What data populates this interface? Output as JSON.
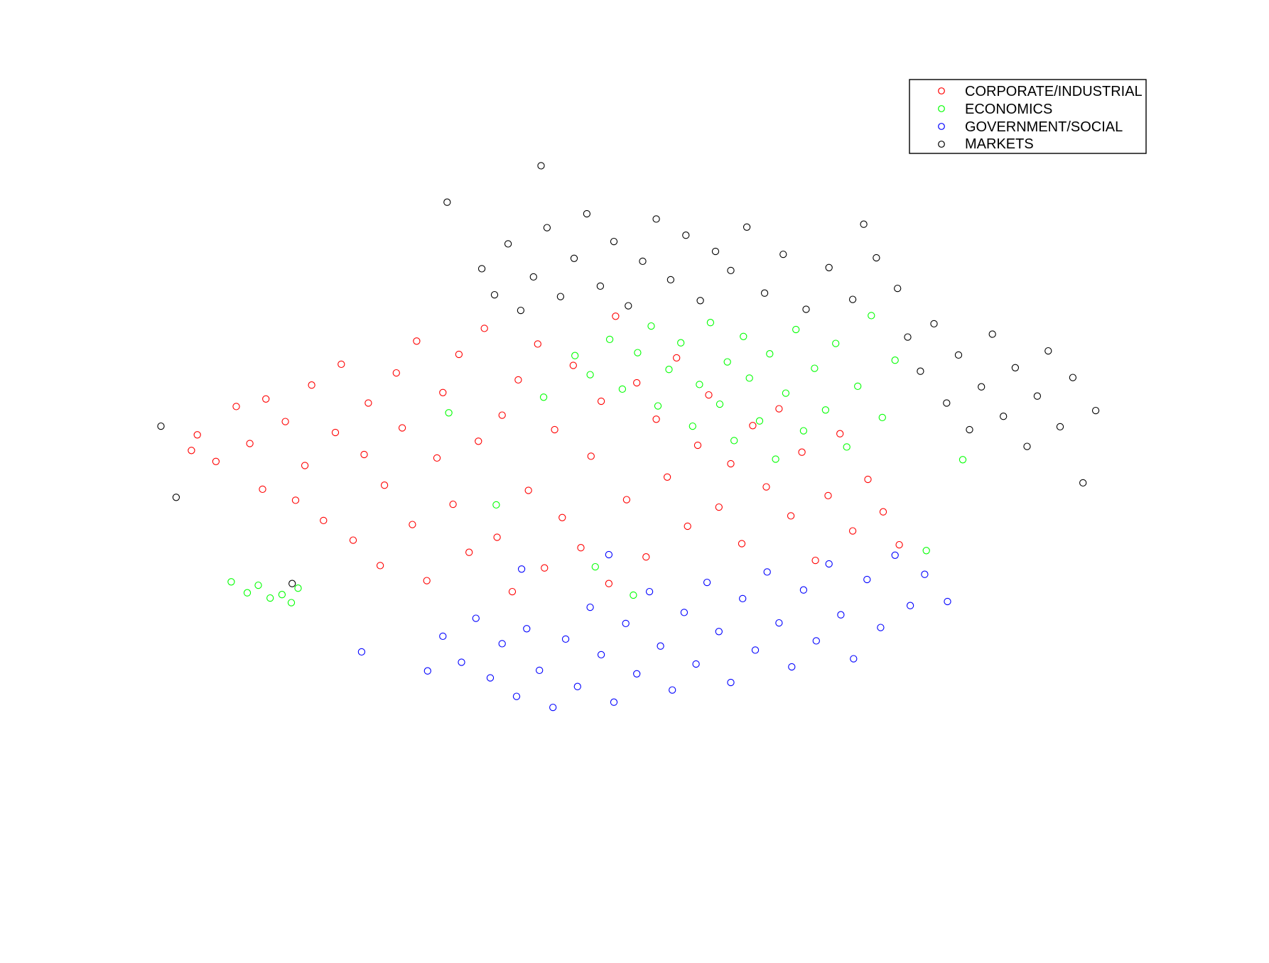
{
  "chart_data": {
    "type": "scatter",
    "title": "",
    "xlabel": "",
    "ylabel": "",
    "axes_visible": false,
    "grid": false,
    "legend_position": "top-right",
    "marker": "open-circle",
    "series": [
      {
        "name": "CORPORATE/INDUSTRIAL",
        "color": "#ff0000",
        "approx_point_count": 2300,
        "points": [
          [
            -42.5,
            3.2
          ],
          [
            -41.8,
            5.9
          ],
          [
            -39.6,
            1.3
          ],
          [
            -37.2,
            10.8
          ],
          [
            -35.6,
            4.4
          ],
          [
            -34.1,
            -3.5
          ],
          [
            -33.7,
            12.1
          ],
          [
            -31.4,
            8.2
          ],
          [
            -30.2,
            -5.4
          ],
          [
            -29.1,
            0.6
          ],
          [
            -28.3,
            14.5
          ],
          [
            -26.9,
            -8.9
          ],
          [
            -25.5,
            6.3
          ],
          [
            -24.8,
            18.1
          ],
          [
            -23.4,
            -12.3
          ],
          [
            -22.1,
            2.5
          ],
          [
            -21.6,
            11.4
          ],
          [
            -20.2,
            -16.7
          ],
          [
            -19.7,
            -2.8
          ],
          [
            -18.3,
            16.6
          ],
          [
            -17.6,
            7.1
          ],
          [
            -16.4,
            -9.6
          ],
          [
            -15.9,
            22.1
          ],
          [
            -14.7,
            -19.3
          ],
          [
            -13.5,
            1.9
          ],
          [
            -12.8,
            13.2
          ],
          [
            -11.6,
            -6.1
          ],
          [
            -10.9,
            19.8
          ],
          [
            -9.7,
            -14.4
          ],
          [
            -8.6,
            4.8
          ],
          [
            -7.9,
            24.3
          ],
          [
            -6.4,
            -11.8
          ],
          [
            -5.8,
            9.3
          ],
          [
            -4.6,
            -21.2
          ],
          [
            -3.9,
            15.4
          ],
          [
            -2.7,
            -3.7
          ],
          [
            -1.6,
            21.6
          ],
          [
            -0.8,
            -17.1
          ],
          [
            0.4,
            6.8
          ],
          [
            1.3,
            -8.4
          ],
          [
            2.6,
            17.9
          ],
          [
            3.5,
            -13.6
          ],
          [
            4.7,
            2.2
          ],
          [
            5.9,
            11.7
          ],
          [
            6.8,
            -19.8
          ],
          [
            7.6,
            26.4
          ],
          [
            8.9,
            -5.3
          ],
          [
            10.1,
            14.9
          ],
          [
            11.2,
            -15.2
          ],
          [
            12.4,
            8.6
          ],
          [
            13.7,
            -1.4
          ],
          [
            14.8,
            19.2
          ],
          [
            16.1,
            -9.9
          ],
          [
            17.3,
            4.1
          ],
          [
            18.6,
            12.8
          ],
          [
            19.8,
            -6.6
          ],
          [
            21.2,
            0.9
          ],
          [
            22.5,
            -12.9
          ],
          [
            23.8,
            7.5
          ],
          [
            25.4,
            -3.1
          ],
          [
            26.9,
            10.4
          ],
          [
            28.3,
            -8.1
          ],
          [
            29.6,
            2.9
          ],
          [
            31.2,
            -15.8
          ],
          [
            32.7,
            -4.6
          ],
          [
            34.1,
            6.1
          ],
          [
            35.6,
            -10.7
          ],
          [
            37.4,
            -1.8
          ],
          [
            39.2,
            -7.4
          ],
          [
            41.1,
            -13.1
          ]
        ]
      },
      {
        "name": "ECONOMICS",
        "color": "#00ff00",
        "approx_point_count": 550,
        "points": [
          [
            -37.8,
            -19.5
          ],
          [
            -35.9,
            -21.4
          ],
          [
            -34.6,
            -20.1
          ],
          [
            -33.2,
            -22.3
          ],
          [
            -31.8,
            -21.7
          ],
          [
            -30.7,
            -23.1
          ],
          [
            -29.9,
            -20.6
          ],
          [
            2.8,
            19.6
          ],
          [
            4.6,
            16.3
          ],
          [
            6.9,
            22.4
          ],
          [
            8.4,
            13.8
          ],
          [
            10.2,
            20.1
          ],
          [
            11.8,
            24.7
          ],
          [
            12.6,
            10.9
          ],
          [
            13.9,
            17.2
          ],
          [
            15.3,
            21.8
          ],
          [
            16.7,
            7.4
          ],
          [
            17.5,
            14.6
          ],
          [
            18.8,
            25.3
          ],
          [
            19.9,
            11.2
          ],
          [
            20.8,
            18.5
          ],
          [
            21.6,
            4.9
          ],
          [
            22.7,
            22.9
          ],
          [
            23.4,
            15.7
          ],
          [
            24.6,
            8.3
          ],
          [
            25.8,
            19.9
          ],
          [
            26.5,
            1.7
          ],
          [
            27.7,
            13.1
          ],
          [
            28.9,
            24.1
          ],
          [
            29.8,
            6.6
          ],
          [
            31.1,
            17.4
          ],
          [
            32.4,
            10.2
          ],
          [
            33.6,
            21.7
          ],
          [
            34.9,
            3.8
          ],
          [
            36.2,
            14.3
          ],
          [
            37.8,
            26.5
          ],
          [
            39.1,
            8.9
          ],
          [
            40.6,
            18.8
          ],
          [
            -12.1,
            9.7
          ],
          [
            -6.5,
            -6.2
          ],
          [
            -0.9,
            12.4
          ],
          [
            5.2,
            -16.9
          ],
          [
            9.7,
            -21.8
          ],
          [
            44.3,
            -14.1
          ],
          [
            48.6,
            1.6
          ]
        ]
      },
      {
        "name": "GOVERNMENT/SOCIAL",
        "color": "#0000ff",
        "approx_point_count": 900,
        "points": [
          [
            -12.8,
            -28.9
          ],
          [
            -10.6,
            -33.4
          ],
          [
            -8.9,
            -25.8
          ],
          [
            -7.2,
            -36.1
          ],
          [
            -5.8,
            -30.2
          ],
          [
            -4.1,
            -39.3
          ],
          [
            -2.9,
            -27.6
          ],
          [
            -1.4,
            -34.8
          ],
          [
            0.2,
            -41.2
          ],
          [
            1.7,
            -29.4
          ],
          [
            3.1,
            -37.6
          ],
          [
            4.6,
            -23.9
          ],
          [
            5.9,
            -32.1
          ],
          [
            7.4,
            -40.3
          ],
          [
            8.8,
            -26.7
          ],
          [
            10.1,
            -35.4
          ],
          [
            11.6,
            -21.2
          ],
          [
            12.9,
            -30.6
          ],
          [
            14.3,
            -38.2
          ],
          [
            15.7,
            -24.8
          ],
          [
            17.1,
            -33.7
          ],
          [
            18.4,
            -19.6
          ],
          [
            19.8,
            -28.1
          ],
          [
            21.2,
            -36.9
          ],
          [
            22.6,
            -22.4
          ],
          [
            24.1,
            -31.3
          ],
          [
            25.5,
            -17.8
          ],
          [
            26.9,
            -26.6
          ],
          [
            28.4,
            -34.2
          ],
          [
            29.8,
            -20.9
          ],
          [
            31.3,
            -29.7
          ],
          [
            32.8,
            -16.4
          ],
          [
            34.2,
            -25.2
          ],
          [
            35.7,
            -32.8
          ],
          [
            37.3,
            -19.1
          ],
          [
            38.9,
            -27.4
          ],
          [
            40.6,
            -14.9
          ],
          [
            42.4,
            -23.6
          ],
          [
            44.1,
            -18.2
          ],
          [
            -22.4,
            -31.6
          ],
          [
            -14.6,
            -34.9
          ],
          [
            -3.5,
            -17.3
          ],
          [
            6.8,
            -14.8
          ],
          [
            46.8,
            -22.9
          ]
        ]
      },
      {
        "name": "MARKETS",
        "color": "#000000",
        "approx_point_count": 750,
        "points": [
          [
            -8.2,
            34.6
          ],
          [
            -6.7,
            30.1
          ],
          [
            -5.1,
            38.9
          ],
          [
            -3.6,
            27.4
          ],
          [
            -2.1,
            33.2
          ],
          [
            -0.5,
            41.7
          ],
          [
            1.1,
            29.8
          ],
          [
            2.7,
            36.4
          ],
          [
            4.2,
            44.1
          ],
          [
            5.8,
            31.6
          ],
          [
            7.4,
            39.3
          ],
          [
            9.1,
            28.2
          ],
          [
            10.8,
            35.9
          ],
          [
            12.4,
            43.2
          ],
          [
            14.1,
            32.7
          ],
          [
            15.9,
            40.4
          ],
          [
            17.6,
            29.1
          ],
          [
            19.4,
            37.6
          ],
          [
            21.2,
            34.3
          ],
          [
            23.1,
            41.8
          ],
          [
            25.2,
            30.4
          ],
          [
            27.4,
            37.1
          ],
          [
            30.1,
            27.6
          ],
          [
            32.8,
            34.8
          ],
          [
            35.6,
            29.3
          ],
          [
            38.4,
            36.5
          ],
          [
            40.9,
            31.2
          ],
          [
            42.1,
            22.8
          ],
          [
            43.6,
            16.9
          ],
          [
            45.2,
            25.1
          ],
          [
            46.7,
            11.4
          ],
          [
            48.1,
            19.7
          ],
          [
            49.4,
            6.8
          ],
          [
            50.8,
            14.2
          ],
          [
            52.1,
            23.3
          ],
          [
            53.4,
            9.1
          ],
          [
            54.8,
            17.5
          ],
          [
            56.2,
            3.9
          ],
          [
            57.4,
            12.6
          ],
          [
            58.7,
            20.4
          ],
          [
            60.1,
            7.3
          ],
          [
            61.6,
            15.8
          ],
          [
            62.8,
            -2.4
          ],
          [
            64.3,
            10.1
          ],
          [
            -46.1,
            7.4
          ],
          [
            -44.3,
            -4.9
          ],
          [
            -30.6,
            -19.8
          ],
          [
            -12.3,
            46.1
          ],
          [
            -1.2,
            52.4
          ],
          [
            36.9,
            42.3
          ]
        ]
      }
    ],
    "xlim": [
      -50,
      70
    ],
    "ylim": [
      -65,
      70
    ]
  }
}
